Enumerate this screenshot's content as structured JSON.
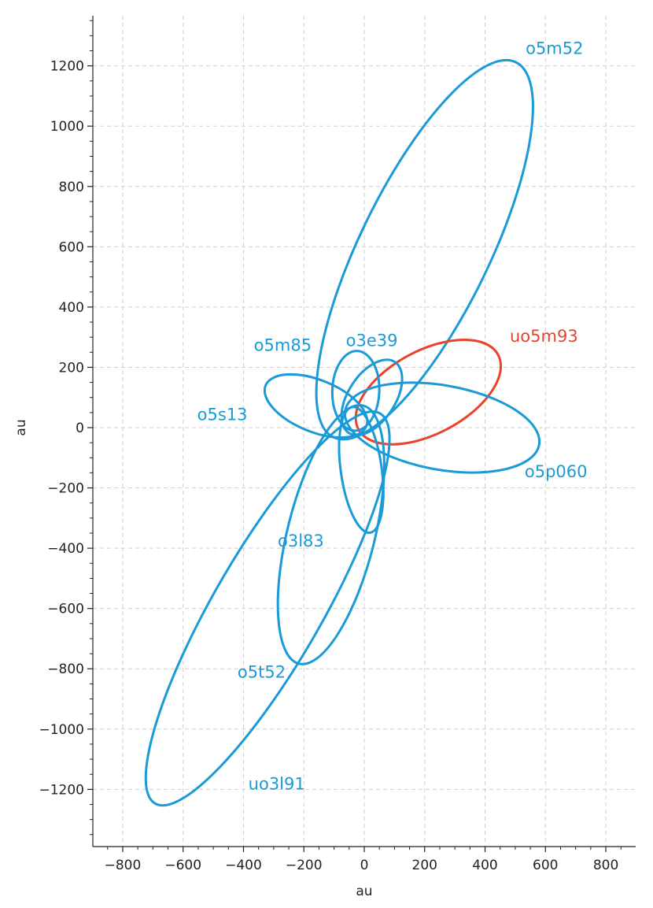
{
  "chart_data": {
    "type": "line",
    "title": "",
    "xlabel": "au",
    "ylabel": "au",
    "xlim": [
      -900,
      900
    ],
    "ylim": [
      -1400,
      1400
    ],
    "x_ticks": [
      -800,
      -600,
      -400,
      -200,
      0,
      200,
      400,
      600,
      800
    ],
    "y_ticks": [
      -1200,
      -1000,
      -800,
      -600,
      -400,
      -200,
      0,
      200,
      400,
      600,
      800,
      1000,
      1200
    ],
    "x_tick_labels": [
      "−800",
      "−600",
      "−400",
      "−200",
      "0",
      "200",
      "400",
      "600",
      "800"
    ],
    "y_tick_labels": [
      "−1200",
      "−1000",
      "−800",
      "−600",
      "−400",
      "−200",
      "0",
      "200",
      "400",
      "600",
      "800",
      "1000",
      "1200"
    ],
    "grid": true,
    "colors": {
      "known": "#1a9ad6",
      "unusual": "#e8432c"
    },
    "orbits": [
      {
        "name": "o5m52",
        "color": "#1a9ad6",
        "center": [
          200,
          590
        ],
        "a": 690,
        "b": 215,
        "angle_deg": 64,
        "label": {
          "text": "o5m52",
          "x": 630,
          "y": 1240
        }
      },
      {
        "name": "uo5m93",
        "color": "#e8432c",
        "center": [
          212,
          118
        ],
        "a": 262,
        "b": 138,
        "angle_deg": 28,
        "label": {
          "text": "uo5m93",
          "x": 595,
          "y": 285
        }
      },
      {
        "name": "o5p060",
        "color": "#1a9ad6",
        "center": [
          258,
          0
        ],
        "a": 326,
        "b": 140,
        "angle_deg": -10,
        "label": {
          "text": "o5p060",
          "x": 635,
          "y": -165
        }
      },
      {
        "name": "o3e39",
        "color": "#1a9ad6",
        "center": [
          25,
          100
        ],
        "a": 140,
        "b": 78,
        "angle_deg": 57,
        "label": {
          "text": "o3e39",
          "x": 25,
          "y": 270
        }
      },
      {
        "name": "o5m85",
        "color": "#1a9ad6",
        "center": [
          -28,
          122
        ],
        "a": 132,
        "b": 78,
        "angle_deg": 88,
        "label": {
          "text": "o5m85",
          "x": -270,
          "y": 255
        }
      },
      {
        "name": "o5s13",
        "color": "#1a9ad6",
        "center": [
          -160,
          72
        ],
        "a": 180,
        "b": 86,
        "angle_deg": -22,
        "label": {
          "text": "o5s13",
          "x": -470,
          "y": 25
        }
      },
      {
        "name": "o3l83",
        "color": "#1a9ad6",
        "center": [
          -10,
          -140
        ],
        "a": 210,
        "b": 68,
        "angle_deg": 98,
        "label": {
          "text": "o3l83",
          "x": -210,
          "y": -395
        }
      },
      {
        "name": "o5t52",
        "color": "#1a9ad6",
        "center": [
          -110,
          -355
        ],
        "a": 440,
        "b": 145,
        "angle_deg": 76,
        "label": {
          "text": "o5t52",
          "x": -340,
          "y": -830
        }
      },
      {
        "name": "uo3l91",
        "color": "#1a9ad6",
        "center": [
          -320,
          -600
        ],
        "a": 745,
        "b": 180,
        "angle_deg": 60,
        "label": {
          "text": "uo3l91",
          "x": -290,
          "y": -1200
        }
      }
    ]
  }
}
